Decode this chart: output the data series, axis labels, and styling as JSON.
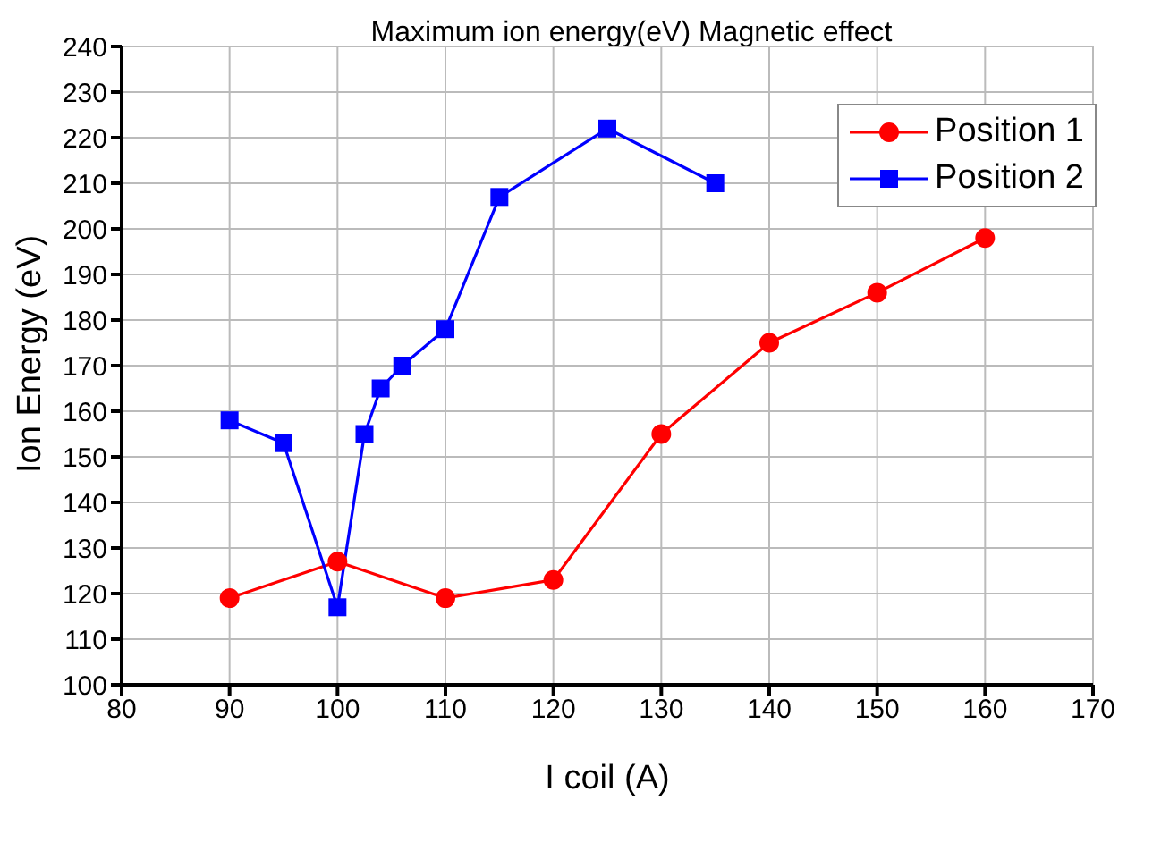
{
  "chart_data": {
    "type": "line",
    "title": "Maximum ion energy(eV) Magnetic effect",
    "xlabel": "I coil (A)",
    "ylabel": "Ion Energy (eV)",
    "series": [
      {
        "name": "Position 1",
        "color": "#ff0000",
        "marker": "circle",
        "x": [
          90,
          100,
          110,
          120,
          130,
          140,
          150,
          160
        ],
        "values": [
          119,
          127,
          119,
          123,
          155,
          175,
          186,
          198
        ]
      },
      {
        "name": "Position 2",
        "color": "#0000ff",
        "marker": "square",
        "x": [
          90,
          95,
          100,
          102.5,
          104,
          106,
          110,
          115,
          125,
          135
        ],
        "values": [
          158,
          153,
          117,
          155,
          165,
          170,
          178,
          207,
          222,
          210
        ]
      }
    ],
    "xlim": [
      80,
      170
    ],
    "xticks": [
      80,
      90,
      100,
      110,
      120,
      130,
      140,
      150,
      160,
      170
    ],
    "ylim": [
      100,
      240
    ],
    "yticks": [
      100,
      110,
      120,
      130,
      140,
      150,
      160,
      170,
      180,
      190,
      200,
      210,
      220,
      230,
      240
    ],
    "grid": true,
    "legend": "top right",
    "line_style": "solid"
  }
}
